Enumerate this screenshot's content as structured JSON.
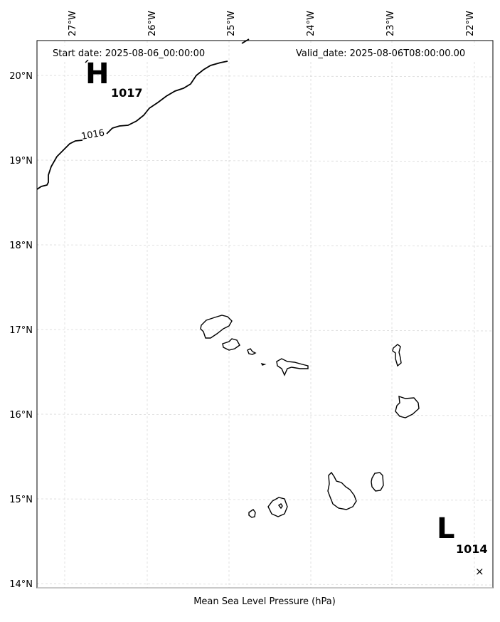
{
  "map": {
    "start_date": "Start date: 2025-08-06_00:00:00",
    "valid_date": "Valid_date: 2025-08-06T08:00:00.00",
    "xlabel": "Mean Sea Level Pressure (hPa)",
    "lon_ticks": [
      "27°W",
      "26°W",
      "25°W",
      "24°W",
      "23°W",
      "22°W"
    ],
    "lat_ticks": [
      "20°N",
      "19°N",
      "18°N",
      "17°N",
      "16°N",
      "15°N",
      "14°N"
    ],
    "isobar_label": "1016",
    "high": {
      "letter": "H",
      "value": "1017"
    },
    "low": {
      "letter": "L",
      "value": "1014",
      "marker": "×"
    },
    "grid": true,
    "colors": {
      "lines": "#000000",
      "grid": "#d9d9d9",
      "background": "#ffffff"
    }
  }
}
